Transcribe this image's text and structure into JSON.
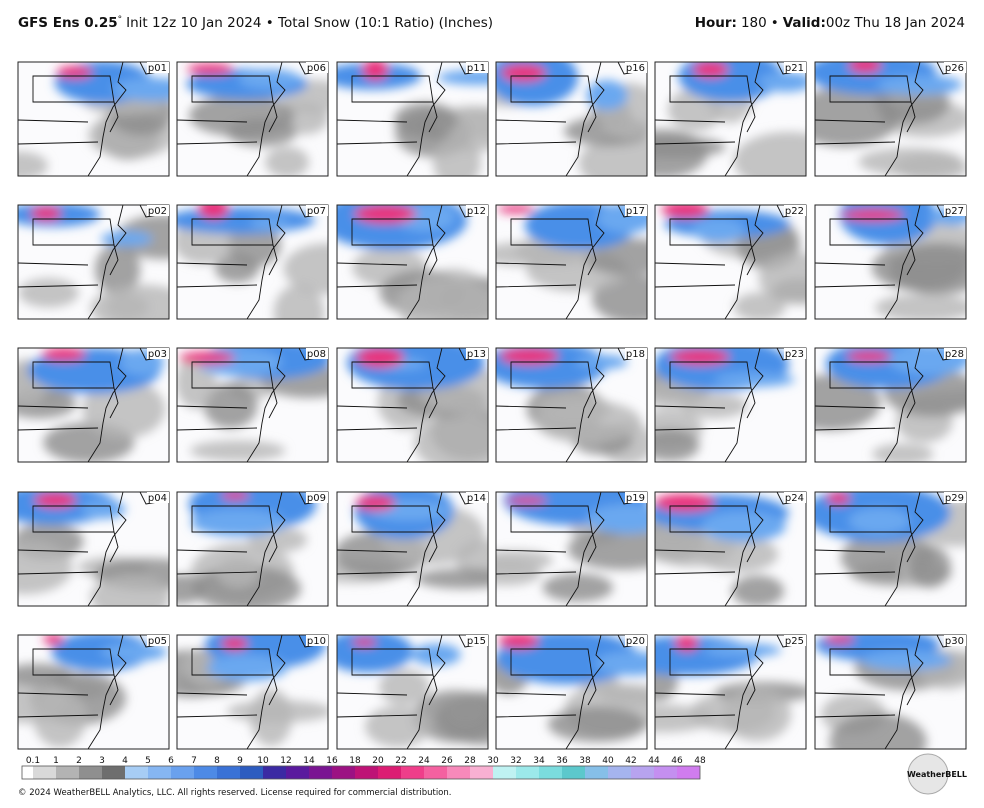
{
  "header": {
    "model": "GFS Ens 0.25",
    "degree": "°",
    "description": "Init 12z 10 Jan 2024 • Total Snow (10:1 Ratio) (Inches)",
    "hour_label": "Hour:",
    "hour": "180",
    "separator": "•",
    "valid_label": "Valid:",
    "valid": "00z Thu 18 Jan 2024"
  },
  "panels": [
    {
      "label": "p01"
    },
    {
      "label": "p06"
    },
    {
      "label": "p11"
    },
    {
      "label": "p16"
    },
    {
      "label": "p21"
    },
    {
      "label": "p26"
    },
    {
      "label": "p02"
    },
    {
      "label": "p07"
    },
    {
      "label": "p12"
    },
    {
      "label": "p17"
    },
    {
      "label": "p22"
    },
    {
      "label": "p27"
    },
    {
      "label": "p03"
    },
    {
      "label": "p08"
    },
    {
      "label": "p13"
    },
    {
      "label": "p18"
    },
    {
      "label": "p23"
    },
    {
      "label": "p28"
    },
    {
      "label": "p04"
    },
    {
      "label": "p09"
    },
    {
      "label": "p14"
    },
    {
      "label": "p19"
    },
    {
      "label": "p24"
    },
    {
      "label": "p29"
    },
    {
      "label": "p05"
    },
    {
      "label": "p10"
    },
    {
      "label": "p15"
    },
    {
      "label": "p20"
    },
    {
      "label": "p25"
    },
    {
      "label": "p30"
    }
  ],
  "colorbar": {
    "labels": [
      "0.1",
      "1",
      "2",
      "3",
      "4",
      "5",
      "6",
      "7",
      "8",
      "9",
      "10",
      "12",
      "14",
      "16",
      "18",
      "20",
      "22",
      "24",
      "26",
      "28",
      "30",
      "32",
      "34",
      "36",
      "38",
      "40",
      "42",
      "44",
      "46",
      "48"
    ]
  },
  "footer": {
    "copyright": "© 2024 WeatherBELL Analytics, LLC. All rights reserved. License required for commercial distribution.",
    "logo": "WeatherBELL"
  }
}
